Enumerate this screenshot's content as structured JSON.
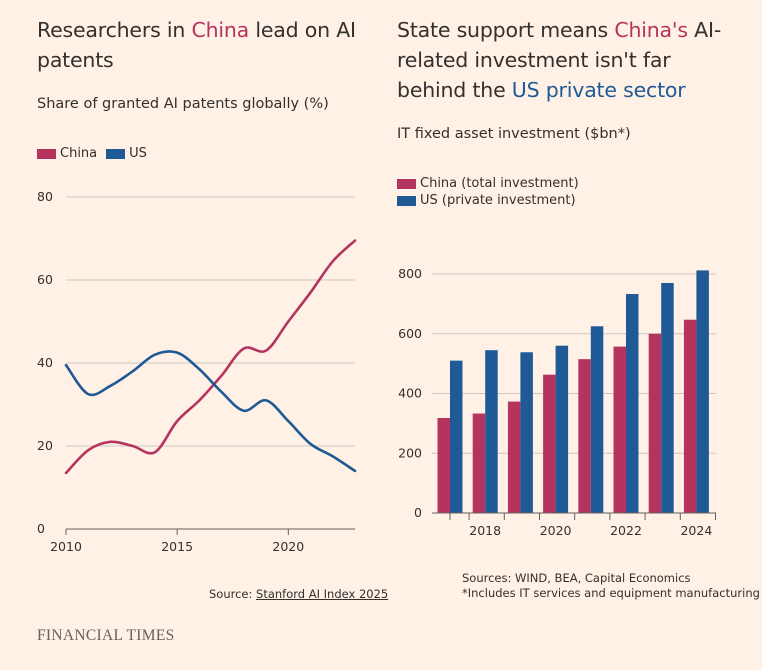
{
  "left": {
    "title_pre": "Researchers in ",
    "title_hl": "China",
    "title_post": " lead on AI patents",
    "subtitle": "Share of granted AI patents globally (%)",
    "source_prefix": "Source: ",
    "source_link": "Stanford AI Index 2025"
  },
  "right": {
    "title_pre": "State support means ",
    "title_hl1": "China's",
    "title_mid": " AI-related investment isn't far behind the ",
    "title_hl2": "US private sector",
    "subtitle": "IT fixed asset investment ($bn*)",
    "source_line1": "Sources: WIND, BEA, Capital Economics",
    "source_line2": "*Includes IT services and equipment manufacturing"
  },
  "footer": {
    "brand": "FINANCIAL TIMES"
  },
  "colors": {
    "china": "#B5345F",
    "us": "#1F5A96",
    "grid": "#CEC6BD",
    "axis": "#66605C"
  },
  "chart_data": [
    {
      "type": "line",
      "title": "Researchers in China lead on AI patents",
      "subtitle": "Share of granted AI patents globally (%)",
      "xlabel": "",
      "ylabel": "",
      "xlim": [
        2010,
        2023
      ],
      "ylim": [
        0,
        80
      ],
      "xticks": [
        2010,
        2015,
        2020
      ],
      "yticks": [
        0,
        20,
        40,
        60,
        80
      ],
      "x": [
        2010,
        2011,
        2012,
        2013,
        2014,
        2015,
        2016,
        2017,
        2018,
        2019,
        2020,
        2021,
        2022,
        2023
      ],
      "series": [
        {
          "name": "China",
          "color": "#B5345F",
          "values": [
            13.5,
            19,
            21,
            20,
            18.5,
            26,
            31,
            37,
            43.5,
            43,
            50,
            57,
            64.5,
            69.5
          ]
        },
        {
          "name": "US",
          "color": "#1F5A96",
          "values": [
            39.5,
            32.5,
            34.5,
            38,
            42,
            42.5,
            38.5,
            33,
            28.5,
            31,
            26,
            20.5,
            17.5,
            14
          ]
        }
      ],
      "legend": "top-left",
      "grid": true
    },
    {
      "type": "bar",
      "title": "State support means China's AI-related investment isn't far behind the US private sector",
      "subtitle": "IT fixed asset investment ($bn*)",
      "xlabel": "",
      "ylabel": "",
      "categories": [
        2017,
        2018,
        2019,
        2020,
        2021,
        2022,
        2023,
        2024
      ],
      "tick_labels": [
        "2018",
        "2020",
        "2022",
        "2024"
      ],
      "ylim": [
        0,
        800
      ],
      "yticks": [
        0,
        200,
        400,
        600,
        800
      ],
      "series": [
        {
          "name": "China (total investment)",
          "color": "#B5345F",
          "values": [
            318,
            333,
            373,
            463,
            515,
            557,
            600,
            647
          ]
        },
        {
          "name": "US (private investment)",
          "color": "#1F5A96",
          "values": [
            510,
            545,
            538,
            560,
            625,
            733,
            770,
            812
          ]
        }
      ],
      "legend": "top-left",
      "grid": true
    }
  ]
}
